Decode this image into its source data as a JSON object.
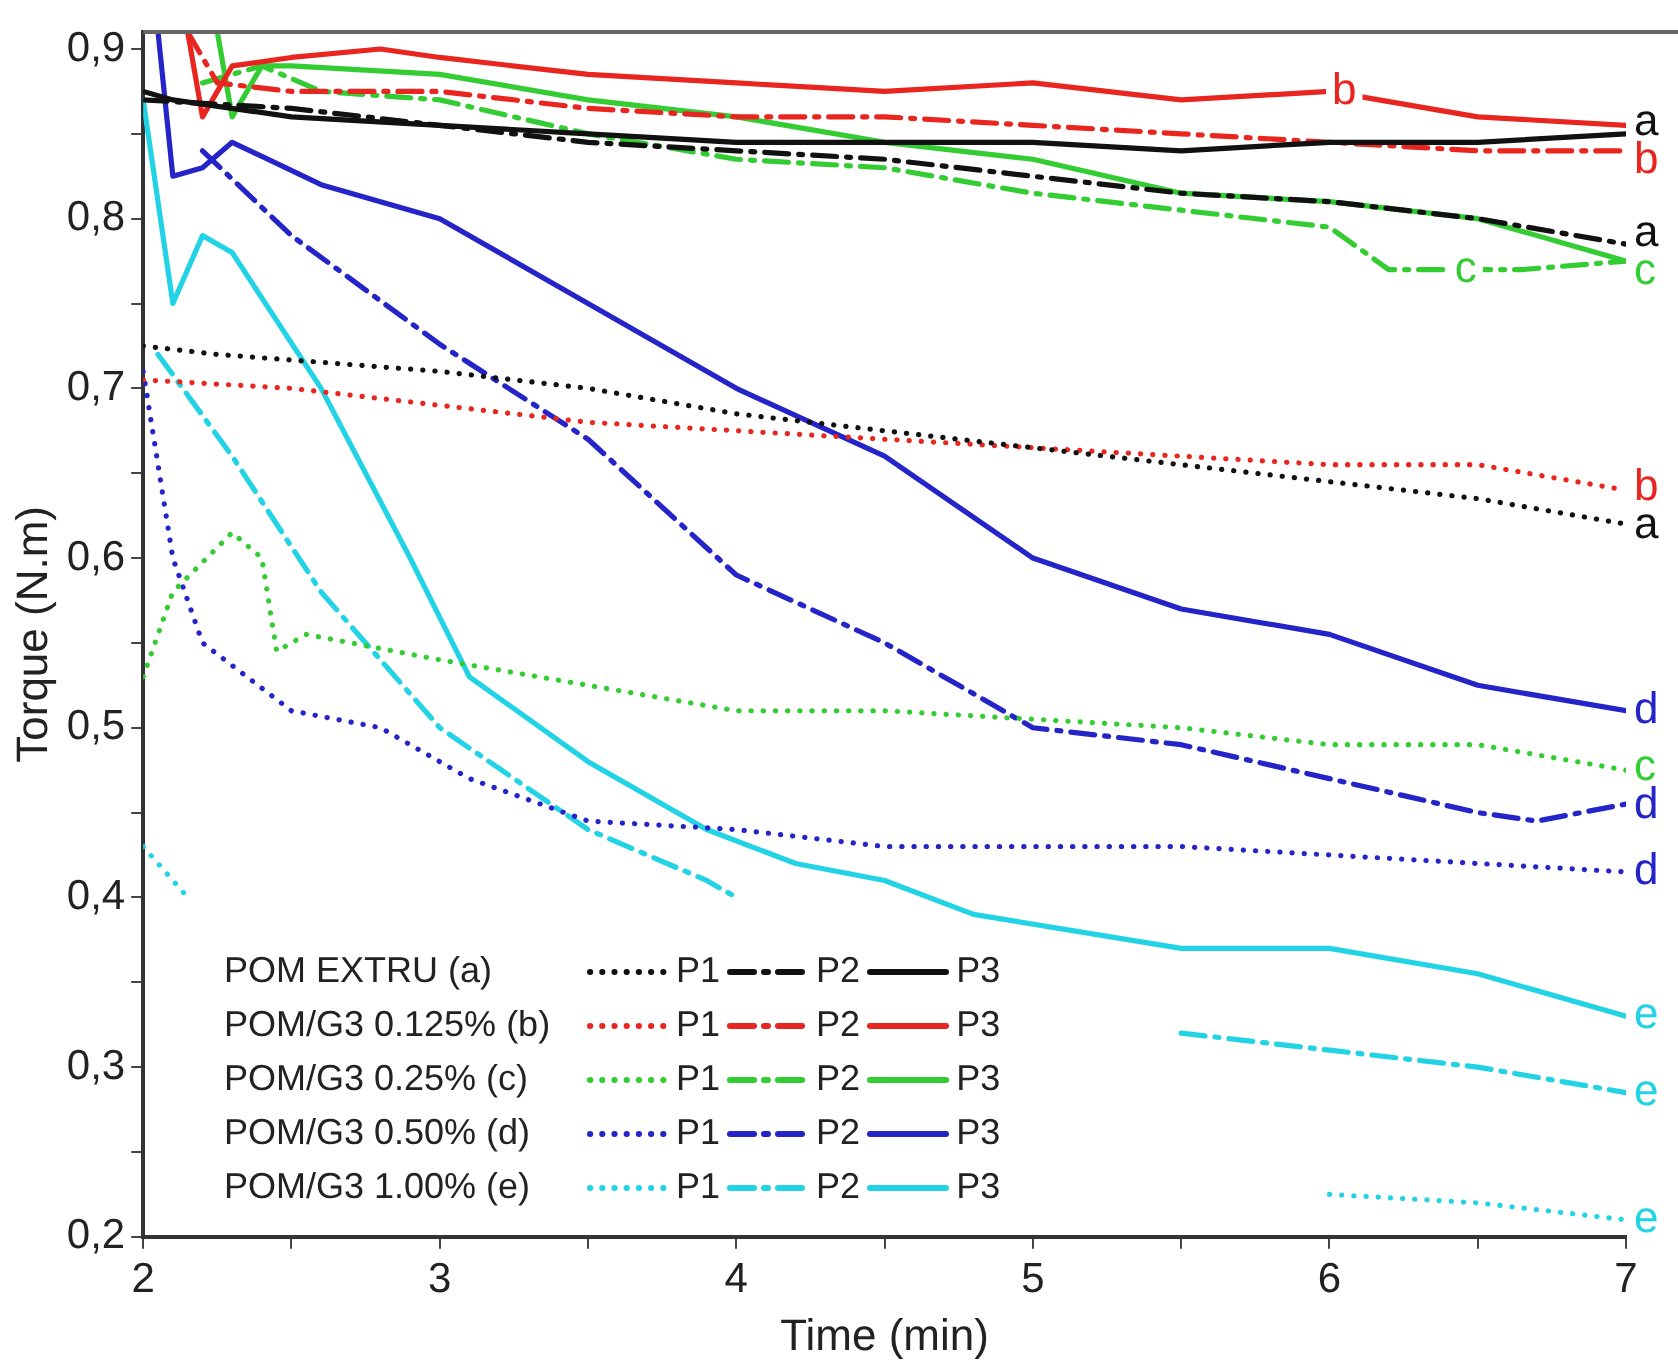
{
  "chart_data": {
    "type": "line",
    "xlabel": "Time (min)",
    "ylabel": "Torque (N.m)",
    "xlim": [
      2,
      7
    ],
    "xticks": [
      2,
      {
        "value": 2.5,
        "label": null
      },
      3,
      {
        "value": 3.5,
        "label": null
      },
      4,
      {
        "value": 4.5,
        "label": null
      },
      5,
      {
        "value": 5.5,
        "label": null
      },
      6,
      {
        "value": 6.5,
        "label": null
      },
      7
    ],
    "ylim": [
      0.2,
      0.91
    ],
    "yticks": [
      {
        "value": 0.2,
        "label": "0,2"
      },
      {
        "value": 0.25,
        "label": null
      },
      {
        "value": 0.3,
        "label": "0,3"
      },
      {
        "value": 0.35,
        "label": null
      },
      {
        "value": 0.4,
        "label": "0,4"
      },
      {
        "value": 0.45,
        "label": null
      },
      {
        "value": 0.5,
        "label": "0,5"
      },
      {
        "value": 0.55,
        "label": null
      },
      {
        "value": 0.6,
        "label": "0,6"
      },
      {
        "value": 0.65,
        "label": null
      },
      {
        "value": 0.7,
        "label": "0,7"
      },
      {
        "value": 0.75,
        "label": null
      },
      {
        "value": 0.8,
        "label": "0,8"
      },
      {
        "value": 0.85,
        "label": null
      },
      {
        "value": 0.9,
        "label": "0,9"
      }
    ],
    "grid": false,
    "legend": "bottom left",
    "marker": "none",
    "series": [
      {
        "name": "P1",
        "color": "#111111",
        "line_style": "dotted",
        "x": [
          2,
          2.25,
          3,
          3.5,
          4,
          4.5,
          5,
          5.5,
          6,
          6.5,
          7
        ],
        "values": [
          0.725,
          0.72,
          0.71,
          0.7,
          0.685,
          0.675,
          0.665,
          0.655,
          0.645,
          0.635,
          0.62
        ]
      },
      {
        "name": "P2",
        "color": "#111111",
        "line_style": "dashed",
        "x": [
          2,
          2.5,
          3,
          3.5,
          4,
          4.5,
          5,
          5.5,
          6,
          6.5,
          7
        ],
        "values": [
          0.87,
          0.865,
          0.855,
          0.845,
          0.84,
          0.835,
          0.825,
          0.815,
          0.81,
          0.8,
          0.785
        ]
      },
      {
        "name": "P3",
        "color": "#111111",
        "line_style": "solid",
        "x": [
          2,
          2.1,
          2.5,
          3,
          3.5,
          4,
          4.5,
          5,
          5.5,
          6,
          6.5,
          7
        ],
        "values": [
          0.875,
          0.87,
          0.86,
          0.855,
          0.85,
          0.845,
          0.845,
          0.845,
          0.84,
          0.845,
          0.845,
          0.85
        ]
      },
      {
        "name": "P1",
        "color": "#e8251f",
        "line_style": "dotted",
        "x": [
          2,
          2.5,
          3,
          3.5,
          4,
          4.5,
          5,
          5.5,
          6,
          6.5,
          7
        ],
        "values": [
          0.705,
          0.7,
          0.69,
          0.68,
          0.675,
          0.67,
          0.665,
          0.66,
          0.655,
          0.655,
          0.64
        ]
      },
      {
        "name": "P2",
        "color": "#e8251f",
        "line_style": "dashed",
        "x": [
          2.15,
          2.25,
          2.5,
          3,
          3.5,
          4,
          4.5,
          5,
          5.5,
          6,
          6.5,
          7
        ],
        "values": [
          0.91,
          0.88,
          0.875,
          0.875,
          0.865,
          0.86,
          0.86,
          0.855,
          0.85,
          0.845,
          0.84,
          0.84
        ]
      },
      {
        "name": "P3",
        "color": "#e8251f",
        "line_style": "solid",
        "x": [
          2.15,
          2.2,
          2.3,
          2.5,
          2.8,
          3,
          3.5,
          4,
          4.5,
          5,
          5.5,
          6,
          6.5,
          7
        ],
        "values": [
          0.91,
          0.86,
          0.89,
          0.895,
          0.9,
          0.895,
          0.885,
          0.88,
          0.875,
          0.88,
          0.87,
          0.875,
          0.86,
          0.855
        ]
      },
      {
        "name": "P1",
        "color": "#33cc33",
        "line_style": "dotted",
        "x": [
          2,
          2.1,
          2.3,
          2.4,
          2.45,
          2.55,
          3,
          3.5,
          4,
          4.5,
          5,
          5.5,
          6,
          6.5,
          7
        ],
        "values": [
          0.53,
          0.58,
          0.615,
          0.6,
          0.545,
          0.555,
          0.54,
          0.525,
          0.51,
          0.51,
          0.505,
          0.5,
          0.49,
          0.49,
          0.475
        ]
      },
      {
        "name": "P2",
        "color": "#33cc33",
        "line_style": "dashed",
        "x": [
          2.2,
          2.4,
          2.6,
          3,
          3.5,
          4,
          4.5,
          5,
          5.5,
          6,
          6.2,
          6.3,
          6.65,
          7
        ],
        "values": [
          0.88,
          0.89,
          0.875,
          0.87,
          0.85,
          0.835,
          0.83,
          0.815,
          0.805,
          0.795,
          0.77,
          0.77,
          0.77,
          0.775
        ]
      },
      {
        "name": "P3",
        "color": "#33cc33",
        "line_style": "solid",
        "x": [
          2.25,
          2.3,
          2.4,
          2.5,
          3,
          3.5,
          4,
          4.5,
          5,
          5.5,
          6,
          6.5,
          7
        ],
        "values": [
          0.91,
          0.86,
          0.89,
          0.89,
          0.885,
          0.87,
          0.86,
          0.845,
          0.835,
          0.815,
          0.81,
          0.8,
          0.775
        ]
      },
      {
        "name": "P1",
        "color": "#2424c8",
        "line_style": "dotted",
        "x": [
          2,
          2.1,
          2.2,
          2.5,
          2.8,
          3.1,
          3.5,
          4,
          4.5,
          5,
          5.5,
          6,
          6.5,
          7
        ],
        "values": [
          0.71,
          0.6,
          0.55,
          0.51,
          0.5,
          0.47,
          0.445,
          0.44,
          0.43,
          0.43,
          0.43,
          0.425,
          0.42,
          0.415
        ]
      },
      {
        "name": "P2",
        "color": "#2424c8",
        "line_style": "dashed",
        "x": [
          2.2,
          2.5,
          3,
          3.5,
          4,
          4.5,
          5,
          5.5,
          6,
          6.5,
          6.7,
          7
        ],
        "values": [
          0.84,
          0.79,
          0.726,
          0.67,
          0.59,
          0.55,
          0.5,
          0.49,
          0.47,
          0.45,
          0.445,
          0.455
        ]
      },
      {
        "name": "P3",
        "color": "#2424c8",
        "line_style": "solid",
        "x": [
          2.05,
          2.1,
          2.2,
          2.3,
          2.6,
          3,
          3.5,
          4,
          4.5,
          5,
          5.5,
          6,
          6.5,
          7
        ],
        "values": [
          0.91,
          0.825,
          0.83,
          0.845,
          0.82,
          0.8,
          0.75,
          0.7,
          0.66,
          0.6,
          0.57,
          0.555,
          0.525,
          0.51
        ]
      },
      {
        "name": "P1",
        "color": "#22d3e6",
        "line_style": "dotted",
        "x": [
          2,
          2.1,
          2.15,
          5.5,
          6,
          6.5,
          7
        ],
        "values": [
          0.43,
          0.41,
          0.4,
          null,
          0.225,
          0.22,
          0.21
        ]
      },
      {
        "name": "P2",
        "color": "#22d3e6",
        "line_style": "dashed",
        "x": [
          2.05,
          2.3,
          2.6,
          3,
          3.5,
          3.9,
          4,
          4.1,
          5.5,
          6,
          6.5,
          7
        ],
        "values": [
          0.72,
          0.66,
          0.58,
          0.5,
          0.44,
          0.41,
          0.4,
          null,
          0.32,
          0.31,
          0.3,
          0.285
        ]
      },
      {
        "name": "P3",
        "color": "#22d3e6",
        "line_style": "solid",
        "x": [
          2,
          2.1,
          2.2,
          2.3,
          2.6,
          2.9,
          3.1,
          3.5,
          3.9,
          4.2,
          4.5,
          4.8,
          5.5,
          6,
          6.5,
          7
        ],
        "values": [
          0.87,
          0.75,
          0.79,
          0.78,
          0.7,
          0.6,
          0.53,
          0.48,
          0.44,
          0.42,
          0.41,
          0.39,
          0.37,
          0.37,
          0.355,
          0.33
        ]
      }
    ],
    "annotations": [
      "POM EXTRU (a)",
      "POM/G3 0.125% (b)",
      "POM/G3 0.25% (c)",
      "POM/G3 0.50% (d)",
      "POM/G3 1.00% (e)",
      {
        "text": "a",
        "x": 7,
        "y": 0.85
      },
      {
        "text": "b",
        "x": 7,
        "y": 0.84
      },
      {
        "text": "a",
        "x": 7,
        "y": 0.785
      },
      {
        "text": "c",
        "x": 7,
        "y": 0.775
      },
      {
        "text": "b",
        "x": 7,
        "y": 0.64
      },
      {
        "text": "a",
        "x": 7,
        "y": 0.62
      },
      {
        "text": "d",
        "x": 7,
        "y": 0.51
      },
      {
        "text": "c",
        "x": 7,
        "y": 0.475
      },
      {
        "text": "d",
        "x": 7,
        "y": 0.455
      },
      {
        "text": "d",
        "x": 7,
        "y": 0.415
      },
      {
        "text": "e",
        "x": 7,
        "y": 0.33
      },
      {
        "text": "e",
        "x": 7,
        "y": 0.285
      },
      {
        "text": "e",
        "x": 7,
        "y": 0.21
      },
      {
        "text": "b",
        "x": 6.05,
        "y": 0.875
      },
      {
        "text": "c",
        "x": 6.46,
        "y": 0.77
      }
    ]
  }
}
